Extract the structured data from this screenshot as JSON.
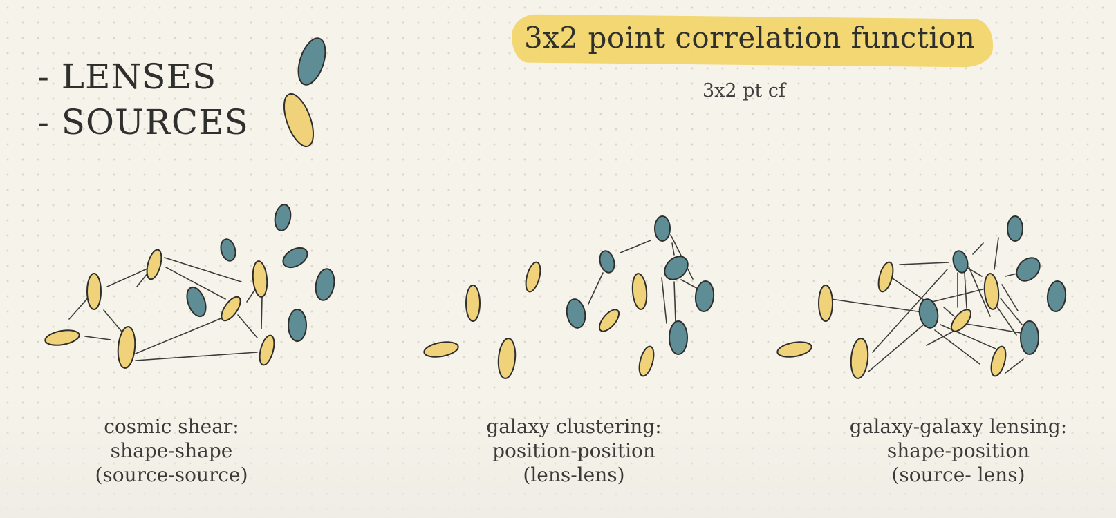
{
  "title": "3x2 point correlation function",
  "subtitle": "3x2 pt cf",
  "legend": [
    {
      "label": "- LENSES",
      "color": "#5f8d96"
    },
    {
      "label": "- SOURCES",
      "color": "#f0d27a"
    }
  ],
  "panels": [
    {
      "name": "cosmic-shear",
      "caption": [
        "cosmic shear:",
        "shape-shape",
        "(source-source)"
      ]
    },
    {
      "name": "galaxy-clustering",
      "caption": [
        "galaxy clustering:",
        "position-position",
        "(lens-lens)"
      ]
    },
    {
      "name": "galaxy-galaxy-lensing",
      "caption": [
        "galaxy-galaxy lensing:",
        "shape-position",
        "(source- lens)"
      ]
    }
  ],
  "colors": {
    "lens": "#5f8d96",
    "source": "#f0d27a",
    "outline": "#2e2e2c",
    "highlight": "#f1d56c",
    "background": "#f6f3ea"
  }
}
